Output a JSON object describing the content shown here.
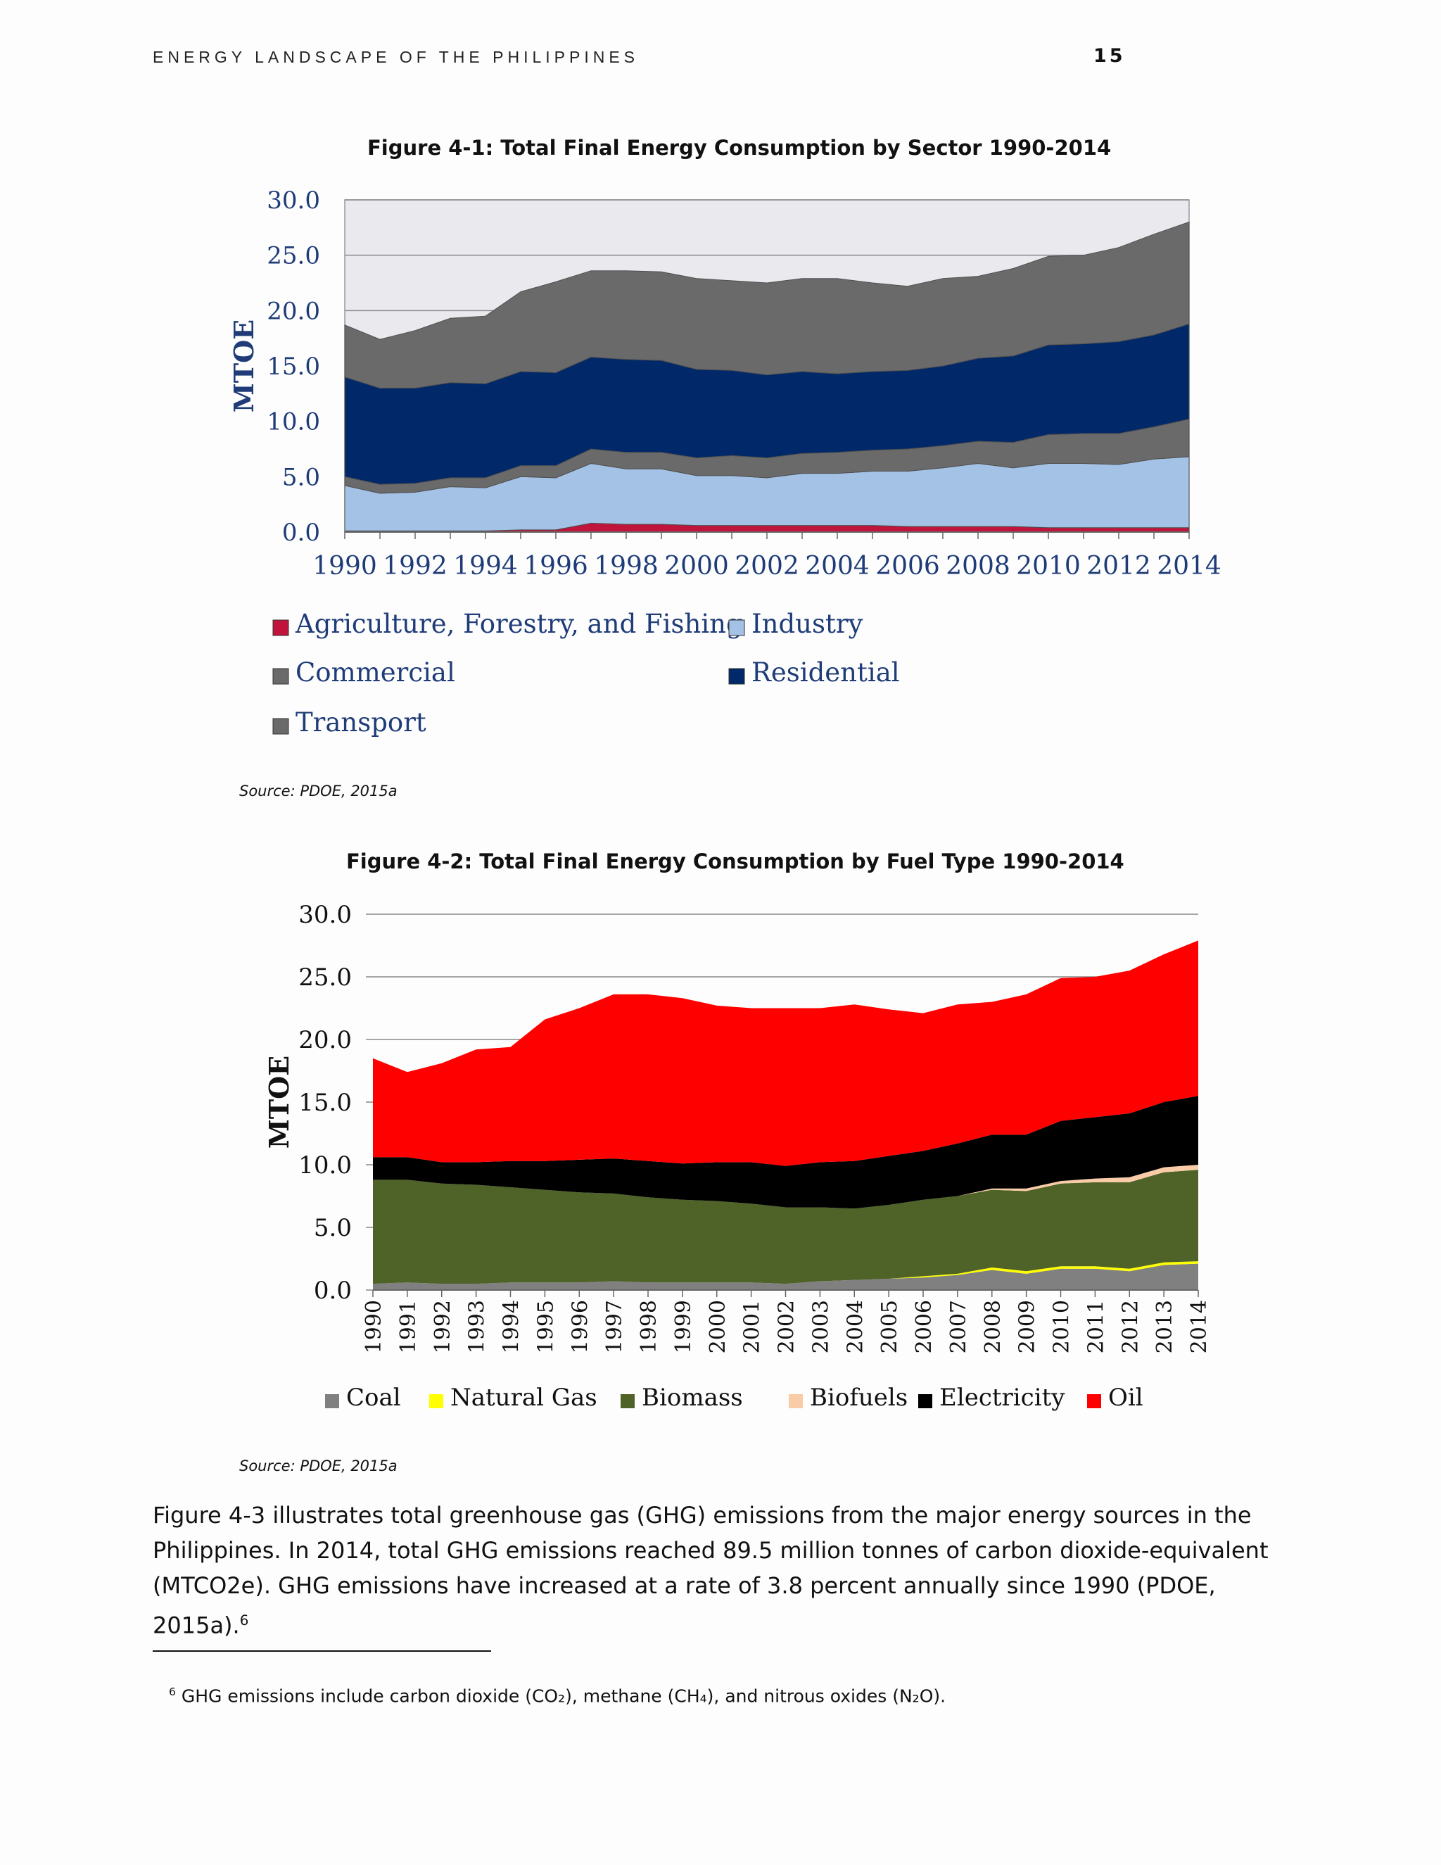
{
  "header": {
    "running_title": "ENERGY LANDSCAPE OF THE PHILIPPINES",
    "page_number": "15"
  },
  "figure1": {
    "title": "Figure 4-1: Total Final Energy Consumption by Sector 1990-2014",
    "source": "Source: PDOE, 2015a"
  },
  "figure2": {
    "title": "Figure 4-2: Total Final Energy Consumption by Fuel Type 1990-2014",
    "source": "Source: PDOE, 2015a"
  },
  "body": {
    "paragraph": "Figure 4-3 illustrates total greenhouse gas (GHG) emissions from the major energy sources in the Philippines. In 2014, total GHG emissions reached 89.5 million tonnes of carbon dioxide-equivalent (MTCO2e). GHG emissions have increased at a rate of 3.8 percent annually since 1990 (PDOE, 2015a).",
    "footnote_ref": "6"
  },
  "footnote": {
    "number": "6",
    "text": "GHG emissions include carbon dioxide (CO₂), methane (CH₄), and nitrous oxides (N₂O)."
  },
  "chart_data": [
    {
      "type": "area",
      "stacked": true,
      "ylabel": "MTOE",
      "ylim": [
        0,
        30
      ],
      "yticks": [
        "0.0",
        "5.0",
        "10.0",
        "15.0",
        "20.0",
        "25.0",
        "30.0"
      ],
      "x": [
        1990,
        1991,
        1992,
        1993,
        1994,
        1995,
        1996,
        1997,
        1998,
        1999,
        2000,
        2001,
        2002,
        2003,
        2004,
        2005,
        2006,
        2007,
        2008,
        2009,
        2010,
        2011,
        2012,
        2013,
        2014
      ],
      "xtick_labels": [
        "1990",
        "1992",
        "1994",
        "1996",
        "1998",
        "2000",
        "2002",
        "2004",
        "2006",
        "2008",
        "2010",
        "2012",
        "2014"
      ],
      "grid": true,
      "legend_position": "bottom",
      "series": [
        {
          "name": "Agriculture, Forestry, and Fishing",
          "color": "#c0143c",
          "values": [
            0.1,
            0.1,
            0.1,
            0.1,
            0.1,
            0.2,
            0.2,
            0.8,
            0.7,
            0.7,
            0.6,
            0.6,
            0.6,
            0.6,
            0.6,
            0.6,
            0.5,
            0.5,
            0.5,
            0.5,
            0.4,
            0.4,
            0.4,
            0.4,
            0.4
          ]
        },
        {
          "name": "Industry",
          "color": "#a4c2e6",
          "values": [
            4.1,
            3.4,
            3.5,
            4.0,
            3.9,
            4.8,
            4.7,
            5.4,
            5.0,
            5.0,
            4.5,
            4.5,
            4.3,
            4.7,
            4.7,
            4.9,
            5.0,
            5.3,
            5.7,
            5.3,
            5.8,
            5.8,
            5.7,
            6.2,
            6.4
          ]
        },
        {
          "name": "Commercial",
          "color": "#6a6a6a",
          "values": [
            0.8,
            0.8,
            0.8,
            0.8,
            0.9,
            1.0,
            1.1,
            1.3,
            1.5,
            1.5,
            1.6,
            1.8,
            1.8,
            1.8,
            1.9,
            1.9,
            2.0,
            2.0,
            2.0,
            2.3,
            2.6,
            2.7,
            2.8,
            2.9,
            3.4
          ]
        },
        {
          "name": "Residential",
          "color": "#012868",
          "values": [
            9.0,
            8.7,
            8.6,
            8.6,
            8.5,
            8.5,
            8.4,
            8.3,
            8.4,
            8.3,
            8.0,
            7.7,
            7.5,
            7.4,
            7.1,
            7.1,
            7.1,
            7.2,
            7.5,
            7.8,
            8.1,
            8.1,
            8.3,
            8.3,
            8.6
          ]
        },
        {
          "name": "Transport",
          "color": "#6a6a6a",
          "values": [
            4.7,
            4.4,
            5.2,
            5.8,
            6.1,
            7.2,
            8.2,
            7.8,
            8.0,
            8.0,
            8.2,
            8.1,
            8.3,
            8.4,
            8.6,
            8.0,
            7.6,
            7.9,
            7.4,
            7.9,
            8.0,
            8.0,
            8.5,
            9.1,
            9.2
          ]
        }
      ]
    },
    {
      "type": "area",
      "stacked": true,
      "ylabel": "MTOE",
      "ylim": [
        0,
        30
      ],
      "yticks": [
        "0.0",
        "5.0",
        "10.0",
        "15.0",
        "20.0",
        "25.0",
        "30.0"
      ],
      "x": [
        1990,
        1991,
        1992,
        1993,
        1994,
        1995,
        1996,
        1997,
        1998,
        1999,
        2000,
        2001,
        2002,
        2003,
        2004,
        2005,
        2006,
        2007,
        2008,
        2009,
        2010,
        2011,
        2012,
        2013,
        2014
      ],
      "xtick_labels": [
        "1990",
        "1991",
        "1992",
        "1993",
        "1994",
        "1995",
        "1996",
        "1997",
        "1998",
        "1999",
        "2000",
        "2001",
        "2002",
        "2003",
        "2004",
        "2005",
        "2006",
        "2007",
        "2008",
        "2009",
        "2010",
        "2011",
        "2012",
        "2013",
        "2014"
      ],
      "grid": true,
      "legend_position": "bottom",
      "series": [
        {
          "name": "Coal",
          "color": "#808080",
          "values": [
            0.5,
            0.6,
            0.5,
            0.5,
            0.6,
            0.6,
            0.6,
            0.7,
            0.6,
            0.6,
            0.6,
            0.6,
            0.5,
            0.7,
            0.8,
            0.9,
            1.0,
            1.2,
            1.6,
            1.3,
            1.7,
            1.7,
            1.5,
            2.0,
            2.1
          ]
        },
        {
          "name": "Natural Gas",
          "color": "#ffff00",
          "values": [
            0,
            0,
            0,
            0,
            0,
            0,
            0,
            0,
            0,
            0,
            0,
            0,
            0,
            0,
            0,
            0,
            0.1,
            0.1,
            0.2,
            0.2,
            0.2,
            0.2,
            0.2,
            0.2,
            0.2
          ]
        },
        {
          "name": "Biomass",
          "color": "#4f6228",
          "values": [
            8.3,
            8.2,
            8.0,
            7.9,
            7.6,
            7.4,
            7.2,
            7.0,
            6.8,
            6.6,
            6.5,
            6.3,
            6.1,
            5.9,
            5.7,
            5.9,
            6.1,
            6.2,
            6.2,
            6.4,
            6.6,
            6.7,
            6.9,
            7.2,
            7.3
          ]
        },
        {
          "name": "Biofuels",
          "color": "#f9cba6",
          "values": [
            0,
            0,
            0,
            0,
            0,
            0,
            0,
            0,
            0,
            0,
            0,
            0,
            0,
            0,
            0,
            0,
            0,
            0,
            0.1,
            0.2,
            0.2,
            0.3,
            0.4,
            0.4,
            0.4
          ]
        },
        {
          "name": "Electricity",
          "color": "#000000",
          "values": [
            1.8,
            1.8,
            1.7,
            1.8,
            2.1,
            2.3,
            2.6,
            2.8,
            2.9,
            2.9,
            3.1,
            3.3,
            3.3,
            3.6,
            3.8,
            3.9,
            3.9,
            4.2,
            4.3,
            4.3,
            4.8,
            4.9,
            5.1,
            5.2,
            5.5
          ]
        },
        {
          "name": "Oil",
          "color": "#ff0000",
          "values": [
            7.9,
            6.8,
            7.9,
            9.0,
            9.1,
            11.3,
            12.1,
            13.1,
            13.3,
            13.2,
            12.5,
            12.3,
            12.6,
            12.3,
            12.5,
            11.7,
            11.0,
            11.1,
            10.6,
            11.2,
            11.4,
            11.2,
            11.4,
            11.8,
            12.4
          ]
        }
      ]
    }
  ]
}
